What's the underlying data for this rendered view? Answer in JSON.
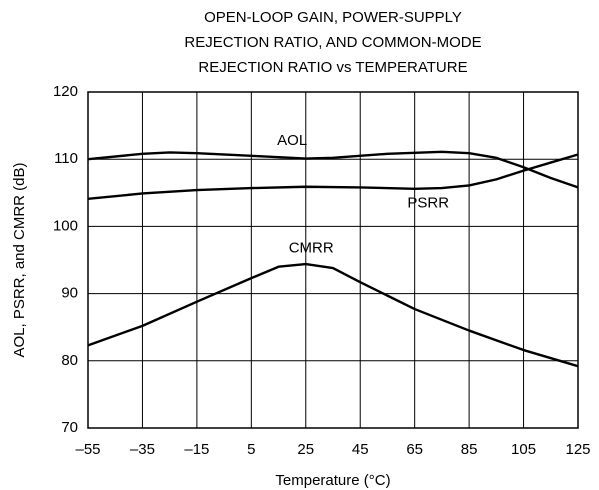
{
  "chart_data": {
    "type": "line",
    "title_lines": [
      "OPEN-LOOP GAIN, POWER-SUPPLY",
      "REJECTION RATIO, AND COMMON-MODE",
      "REJECTION RATIO vs TEMPERATURE"
    ],
    "x_label": "Temperature (°C)",
    "y_label": "AOL, PSRR, and CMRR (dB)",
    "xlim": [
      -55,
      125
    ],
    "xticks": [
      {
        "value": -55,
        "label": "–55"
      },
      {
        "value": -35,
        "label": "–35"
      },
      {
        "value": -15,
        "label": "–15"
      },
      5,
      25,
      45,
      65,
      85,
      105,
      125
    ],
    "ylim": [
      70,
      120
    ],
    "yticks": [
      70,
      80,
      90,
      100,
      110,
      120
    ],
    "grid": true,
    "series": [
      {
        "name": "AOL",
        "color": "#000000",
        "x": [
          -55,
          -35,
          -25,
          -15,
          5,
          25,
          35,
          55,
          75,
          85,
          95,
          105,
          115,
          125
        ],
        "values": [
          110,
          110.8,
          111,
          110.9,
          110.5,
          110.1,
          110.2,
          110.8,
          111.1,
          110.9,
          110.2,
          108.8,
          107.2,
          105.8
        ]
      },
      {
        "name": "PSRR",
        "color": "#000000",
        "x": [
          -55,
          -35,
          -15,
          5,
          25,
          45,
          65,
          75,
          85,
          95,
          105,
          115,
          125
        ],
        "values": [
          104.1,
          104.9,
          105.4,
          105.7,
          105.9,
          105.8,
          105.6,
          105.7,
          106.1,
          107,
          108.3,
          109.5,
          110.7
        ]
      },
      {
        "name": "CMRR",
        "color": "#000000",
        "x": [
          -55,
          -35,
          -15,
          5,
          15,
          25,
          35,
          45,
          55,
          65,
          85,
          105,
          125
        ],
        "values": [
          82.3,
          85.2,
          88.8,
          92.3,
          94,
          94.4,
          93.8,
          91.7,
          89.7,
          87.7,
          84.5,
          81.6,
          79.2
        ]
      }
    ]
  }
}
